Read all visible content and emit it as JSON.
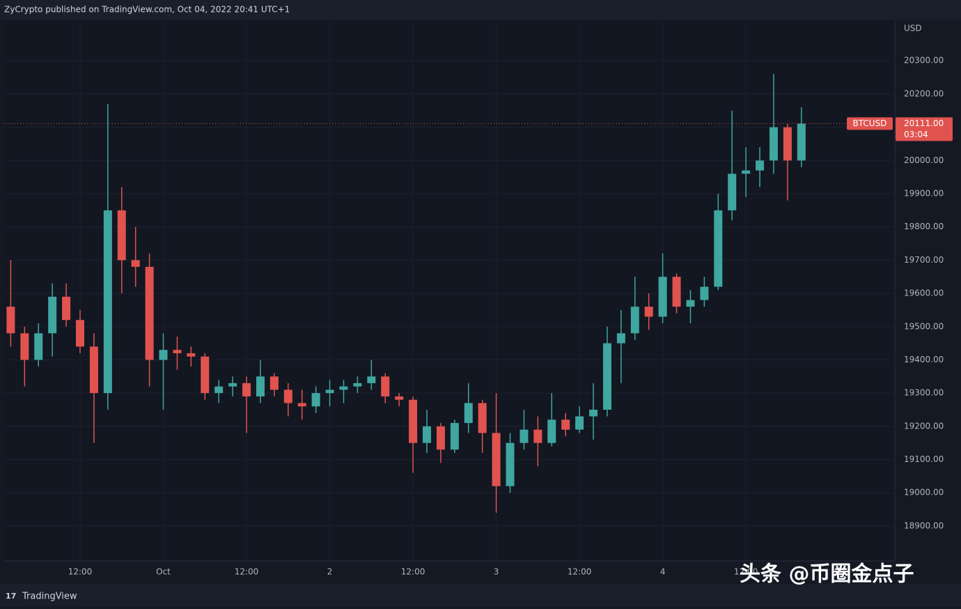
{
  "chart_data": {
    "type": "candlestick",
    "title": "ZyCrypto published on TradingView.com, Oct 04, 2022 20:41 UTC+1",
    "y_label": "USD",
    "categories": [
      null,
      null,
      null,
      null,
      null,
      "12:00",
      null,
      null,
      null,
      null,
      null,
      "Oct",
      null,
      null,
      null,
      null,
      null,
      "12:00",
      null,
      null,
      null,
      null,
      null,
      "2",
      null,
      null,
      null,
      null,
      null,
      "12:00",
      null,
      null,
      null,
      null,
      null,
      "3",
      null,
      null,
      null,
      null,
      null,
      "12:00",
      null,
      null,
      null,
      null,
      null,
      "4",
      null,
      null,
      null,
      null,
      null,
      "12:00",
      null,
      null,
      null,
      null
    ],
    "open": [
      19560,
      19480,
      19400,
      19480,
      19590,
      19520,
      19440,
      19300,
      19850,
      19700,
      19680,
      19400,
      19430,
      19420,
      19410,
      19300,
      19320,
      19330,
      19290,
      19350,
      19310,
      19270,
      19260,
      19300,
      19310,
      19320,
      19330,
      19350,
      19290,
      19280,
      19150,
      19200,
      19130,
      19210,
      19270,
      19180,
      19020,
      19150,
      19190,
      19150,
      19220,
      19190,
      19230,
      19250,
      19450,
      19480,
      19560,
      19530,
      19650,
      19560,
      19580,
      19620,
      19850,
      19960,
      19970,
      20000,
      20100,
      20000
    ],
    "high": [
      19700,
      19500,
      19510,
      19630,
      19630,
      19550,
      19480,
      20170,
      19920,
      19800,
      19720,
      19480,
      19470,
      19440,
      19420,
      19340,
      19350,
      19350,
      19400,
      19360,
      19330,
      19310,
      19320,
      19340,
      19340,
      19350,
      19400,
      19360,
      19300,
      19290,
      19250,
      19210,
      19220,
      19330,
      19280,
      19300,
      19180,
      19250,
      19230,
      19300,
      19240,
      19260,
      19330,
      19500,
      19550,
      19650,
      19600,
      19720,
      19660,
      19610,
      19650,
      19900,
      20150,
      20040,
      20040,
      20260,
      20110,
      20160
    ],
    "low": [
      19440,
      19320,
      19380,
      19410,
      19500,
      19420,
      19150,
      19250,
      19600,
      19620,
      19320,
      19250,
      19370,
      19380,
      19280,
      19270,
      19290,
      19180,
      19270,
      19290,
      19230,
      19220,
      19240,
      19260,
      19270,
      19300,
      19310,
      19270,
      19260,
      19060,
      19120,
      19090,
      19120,
      19180,
      19120,
      18940,
      19000,
      19130,
      19080,
      19140,
      19170,
      19180,
      19160,
      19230,
      19330,
      19460,
      19490,
      19510,
      19540,
      19510,
      19560,
      19610,
      19820,
      19890,
      19920,
      19960,
      19880,
      19980
    ],
    "close": [
      19480,
      19400,
      19480,
      19590,
      19520,
      19440,
      19300,
      19850,
      19700,
      19680,
      19400,
      19430,
      19420,
      19410,
      19300,
      19320,
      19330,
      19290,
      19350,
      19310,
      19270,
      19260,
      19300,
      19310,
      19320,
      19330,
      19350,
      19290,
      19280,
      19150,
      19200,
      19130,
      19210,
      19270,
      19180,
      19020,
      19150,
      19190,
      19150,
      19220,
      19190,
      19230,
      19250,
      19450,
      19480,
      19560,
      19530,
      19650,
      19560,
      19580,
      19620,
      19850,
      19960,
      19970,
      20000,
      20100,
      20000,
      20111
    ],
    "up_color": "#3fa6a0",
    "down_color": "#e0534f",
    "ylim": [
      18795,
      20420
    ],
    "yticks": [
      {
        "value": 18900,
        "label": "18900.00"
      },
      {
        "value": 19000,
        "label": "19000.00"
      },
      {
        "value": 19100,
        "label": "19100.00"
      },
      {
        "value": 19200,
        "label": "19200.00"
      },
      {
        "value": 19300,
        "label": "19300.00"
      },
      {
        "value": 19400,
        "label": "19400.00"
      },
      {
        "value": 19500,
        "label": "19500.00"
      },
      {
        "value": 19600,
        "label": "19600.00"
      },
      {
        "value": 19700,
        "label": "19700.00"
      },
      {
        "value": 19800,
        "label": "19800.00"
      },
      {
        "value": 19900,
        "label": "19900.00"
      },
      {
        "value": 20000,
        "label": "20000.00"
      },
      {
        "value": 20100,
        "label": "20100.00"
      },
      {
        "value": 20200,
        "label": "20200.00"
      },
      {
        "value": 20300,
        "label": "20300.00"
      }
    ],
    "grid": true,
    "last_price": {
      "symbol": "BTCUSD",
      "value": 20111,
      "label": "20111.00",
      "countdown": "03:04"
    }
  },
  "footer": "TradingView",
  "watermark": "头条 @币圈金点子"
}
